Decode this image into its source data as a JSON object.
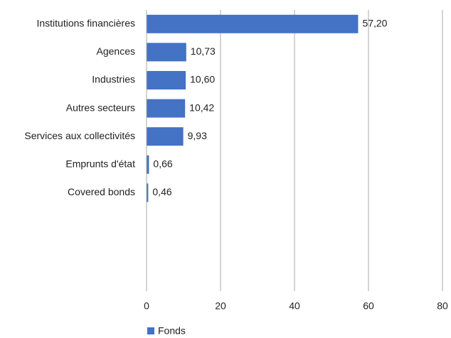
{
  "chart_data": {
    "type": "bar",
    "orientation": "horizontal",
    "categories": [
      "Institutions financières",
      "Agences",
      "Industries",
      "Autres secteurs",
      "Services aux collectivités",
      "Emprunts d'état",
      "Covered bonds"
    ],
    "series": [
      {
        "name": "Fonds",
        "color": "#4472c4",
        "values": [
          57.2,
          10.73,
          10.6,
          10.42,
          9.93,
          0.66,
          0.46
        ],
        "value_labels": [
          "57,20",
          "10,73",
          "10,60",
          "10,42",
          "9,93",
          "0,66",
          "0,46"
        ]
      }
    ],
    "xlim": [
      0,
      80
    ],
    "xticks": [
      0,
      20,
      40,
      60,
      80
    ],
    "grid": true,
    "legend": "bottom"
  }
}
